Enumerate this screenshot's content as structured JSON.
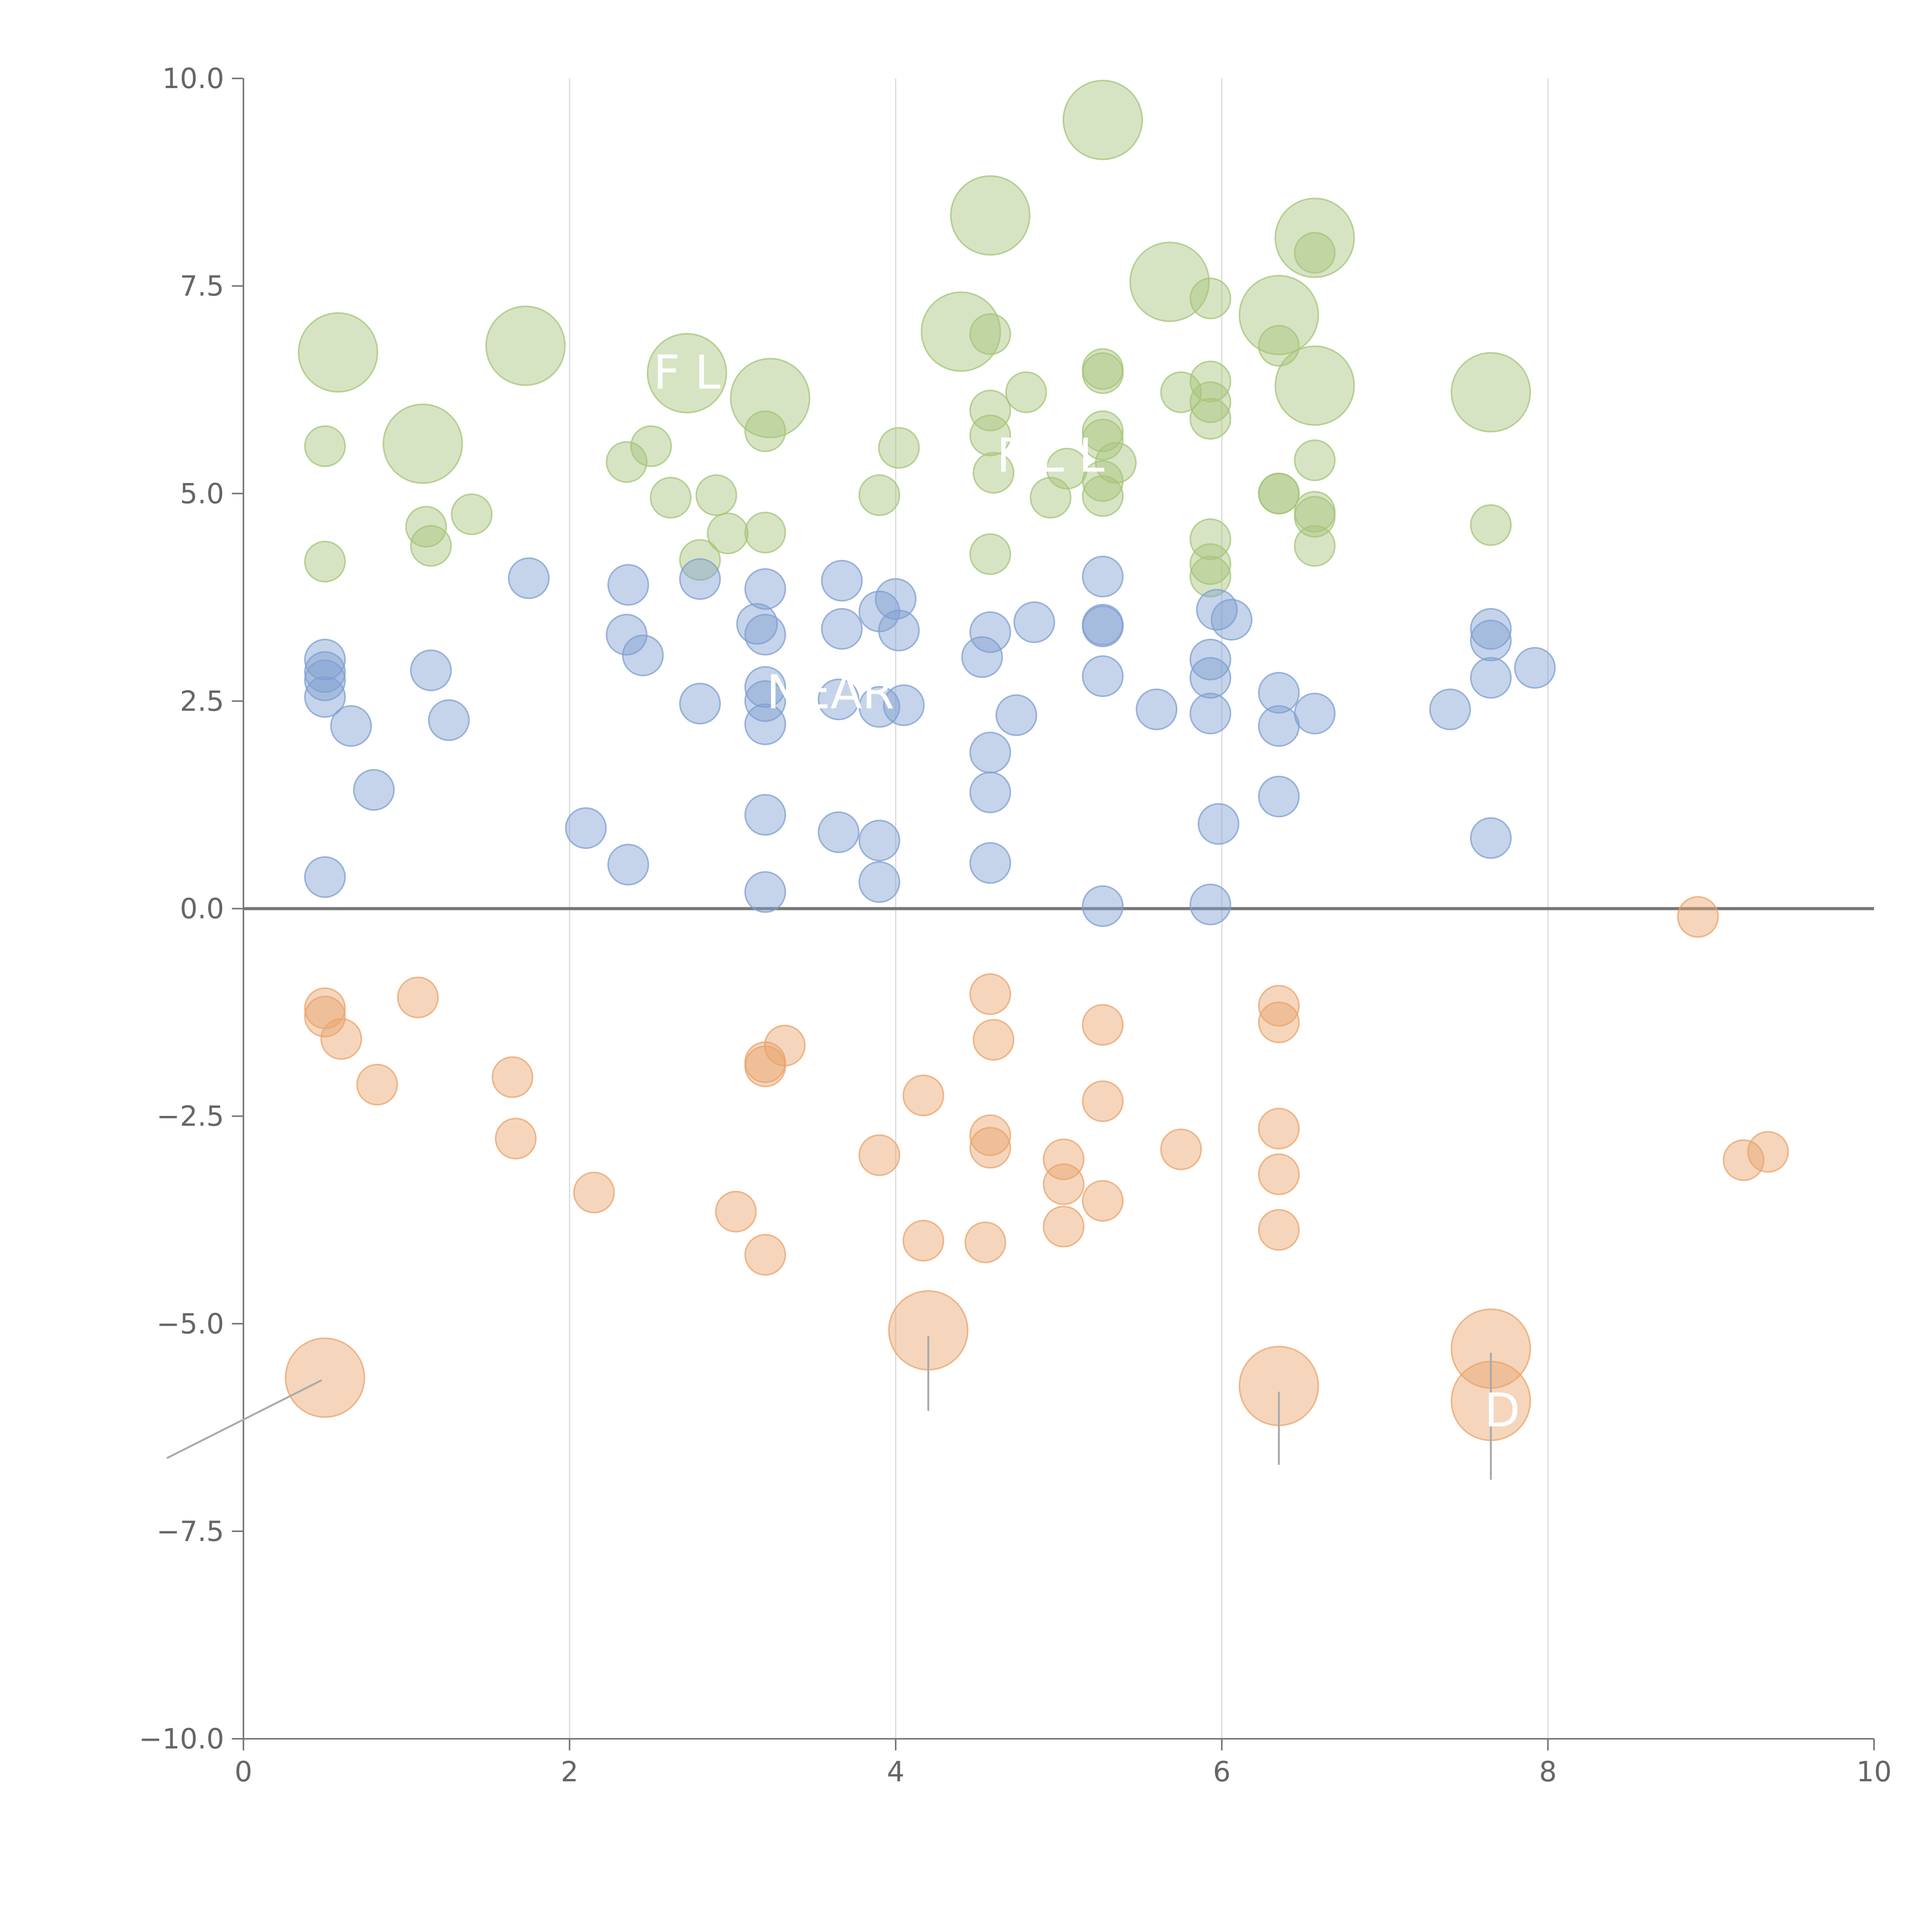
{
  "chart_data": {
    "type": "scatter",
    "title": "",
    "xlabel": "",
    "ylabel": "",
    "xlim": [
      0,
      10
    ],
    "ylim": [
      -10,
      10
    ],
    "x_ticks": [
      "0",
      "2",
      "4",
      "6",
      "8",
      "10"
    ],
    "y_ticks": [
      "−10.0",
      "−7.5",
      "−5.0",
      "−2.5",
      "0.0",
      "2.5",
      "5.0",
      "7.5",
      "10.0"
    ],
    "grid": "vertical only",
    "zero_line": true,
    "series": [
      {
        "color": "#a6c47a",
        "points": [
          [
            0.58,
            6.7,
            2
          ],
          [
            1.73,
            6.78,
            2
          ],
          [
            1.1,
            5.6,
            2
          ],
          [
            2.72,
            6.45,
            2
          ],
          [
            3.23,
            6.15,
            2
          ],
          [
            4.58,
            8.35,
            2
          ],
          [
            4.4,
            6.95,
            2
          ],
          [
            5.27,
            9.5,
            2
          ],
          [
            5.68,
            7.55,
            2
          ],
          [
            6.35,
            7.15,
            2
          ],
          [
            6.57,
            8.08,
            2
          ],
          [
            6.57,
            6.3,
            2
          ],
          [
            7.65,
            6.22,
            2
          ],
          [
            0.5,
            5.57,
            1
          ],
          [
            0.5,
            4.18,
            1
          ],
          [
            1.12,
            4.6,
            1
          ],
          [
            1.15,
            4.37,
            1
          ],
          [
            1.4,
            4.75,
            1
          ],
          [
            2.35,
            5.38,
            1
          ],
          [
            2.5,
            5.57,
            1
          ],
          [
            2.62,
            4.95,
            1
          ],
          [
            2.8,
            4.2,
            1
          ],
          [
            2.9,
            4.98,
            1
          ],
          [
            2.97,
            4.52,
            1
          ],
          [
            3.2,
            4.53,
            1
          ],
          [
            3.2,
            5.75,
            1
          ],
          [
            3.9,
            4.98,
            1
          ],
          [
            4.02,
            5.55,
            1
          ],
          [
            4.58,
            6.92,
            1
          ],
          [
            4.58,
            6.0,
            1
          ],
          [
            4.58,
            5.7,
            1
          ],
          [
            4.6,
            5.25,
            1
          ],
          [
            4.58,
            4.27,
            1
          ],
          [
            4.8,
            6.22,
            1
          ],
          [
            4.95,
            4.95,
            1
          ],
          [
            5.05,
            5.3,
            1
          ],
          [
            5.27,
            6.5,
            1
          ],
          [
            5.27,
            6.45,
            1
          ],
          [
            5.27,
            5.75,
            1
          ],
          [
            5.27,
            5.65,
            1
          ],
          [
            5.27,
            5.15,
            1
          ],
          [
            5.27,
            4.97,
            1
          ],
          [
            5.35,
            5.37,
            1
          ],
          [
            5.75,
            6.22,
            1
          ],
          [
            5.93,
            7.35,
            1
          ],
          [
            5.93,
            6.35,
            1
          ],
          [
            5.93,
            6.1,
            1
          ],
          [
            5.93,
            5.9,
            1
          ],
          [
            5.93,
            4.45,
            1
          ],
          [
            5.93,
            4.15,
            1
          ],
          [
            5.93,
            4.0,
            1
          ],
          [
            6.35,
            6.78,
            1
          ],
          [
            6.35,
            5.0,
            1
          ],
          [
            6.35,
            5.0,
            1
          ],
          [
            6.57,
            7.9,
            1
          ],
          [
            6.57,
            5.4,
            1
          ],
          [
            6.57,
            4.78,
            1
          ],
          [
            6.57,
            4.72,
            1
          ],
          [
            6.57,
            4.37,
            1
          ],
          [
            7.65,
            4.62,
            1
          ]
        ]
      },
      {
        "color": "#7f9fd1",
        "points": [
          [
            0.5,
            3.0,
            1
          ],
          [
            0.5,
            2.85,
            1
          ],
          [
            0.5,
            2.75,
            1
          ],
          [
            0.5,
            2.55,
            1
          ],
          [
            0.5,
            0.38,
            1
          ],
          [
            0.66,
            2.2,
            1
          ],
          [
            0.8,
            1.43,
            1
          ],
          [
            1.15,
            2.87,
            1
          ],
          [
            1.26,
            2.27,
            1
          ],
          [
            1.75,
            3.98,
            1
          ],
          [
            2.1,
            0.97,
            1
          ],
          [
            2.36,
            3.9,
            1
          ],
          [
            2.35,
            3.3,
            1
          ],
          [
            2.45,
            3.05,
            1
          ],
          [
            2.36,
            0.53,
            1
          ],
          [
            2.8,
            3.97,
            1
          ],
          [
            2.8,
            2.47,
            1
          ],
          [
            3.15,
            3.43,
            1
          ],
          [
            3.2,
            3.85,
            1
          ],
          [
            3.2,
            3.3,
            1
          ],
          [
            3.2,
            2.67,
            1
          ],
          [
            3.2,
            2.5,
            1
          ],
          [
            3.2,
            2.22,
            1
          ],
          [
            3.2,
            1.13,
            1
          ],
          [
            3.2,
            0.2,
            1
          ],
          [
            3.65,
            2.52,
            1
          ],
          [
            3.67,
            3.95,
            1
          ],
          [
            3.67,
            3.37,
            1
          ],
          [
            3.65,
            0.92,
            1
          ],
          [
            3.9,
            3.58,
            1
          ],
          [
            3.9,
            2.43,
            1
          ],
          [
            3.9,
            0.82,
            1
          ],
          [
            3.9,
            0.32,
            1
          ],
          [
            4.0,
            3.73,
            1
          ],
          [
            4.02,
            3.35,
            1
          ],
          [
            4.05,
            2.45,
            1
          ],
          [
            4.53,
            3.03,
            1
          ],
          [
            4.58,
            3.33,
            1
          ],
          [
            4.58,
            1.88,
            1
          ],
          [
            4.58,
            1.4,
            1
          ],
          [
            4.58,
            0.55,
            1
          ],
          [
            4.74,
            2.33,
            1
          ],
          [
            4.85,
            3.45,
            1
          ],
          [
            5.27,
            4.0,
            1
          ],
          [
            5.27,
            3.42,
            1
          ],
          [
            5.27,
            3.4,
            1
          ],
          [
            5.27,
            2.8,
            1
          ],
          [
            5.27,
            0.03,
            1
          ],
          [
            5.6,
            2.4,
            1
          ],
          [
            5.93,
            3.0,
            1
          ],
          [
            5.93,
            2.78,
            1
          ],
          [
            5.93,
            2.35,
            1
          ],
          [
            5.93,
            0.05,
            1
          ],
          [
            5.97,
            3.6,
            1
          ],
          [
            5.98,
            1.02,
            1
          ],
          [
            6.06,
            3.48,
            1
          ],
          [
            6.35,
            2.6,
            1
          ],
          [
            6.35,
            2.2,
            1
          ],
          [
            6.35,
            1.35,
            1
          ],
          [
            6.57,
            2.35,
            1
          ],
          [
            7.4,
            2.4,
            1
          ],
          [
            7.65,
            3.37,
            1
          ],
          [
            7.65,
            3.23,
            1
          ],
          [
            7.65,
            2.78,
            1
          ],
          [
            7.65,
            0.85,
            1
          ],
          [
            7.92,
            2.9,
            1
          ]
        ]
      },
      {
        "color": "#e9a46c",
        "points": [
          [
            0.5,
            -5.65,
            2
          ],
          [
            4.2,
            -5.08,
            2
          ],
          [
            6.35,
            -5.75,
            2
          ],
          [
            7.65,
            -5.3,
            2
          ],
          [
            7.65,
            -5.93,
            2
          ],
          [
            0.5,
            -1.2,
            1
          ],
          [
            0.5,
            -1.3,
            1
          ],
          [
            0.6,
            -1.57,
            1
          ],
          [
            0.82,
            -2.12,
            1
          ],
          [
            1.07,
            -1.07,
            1
          ],
          [
            1.65,
            -2.03,
            1
          ],
          [
            1.67,
            -2.77,
            1
          ],
          [
            2.15,
            -3.42,
            1
          ],
          [
            3.02,
            -3.65,
            1
          ],
          [
            3.2,
            -1.85,
            1
          ],
          [
            3.2,
            -1.9,
            1
          ],
          [
            3.2,
            -4.17,
            1
          ],
          [
            3.32,
            -1.65,
            1
          ],
          [
            3.9,
            -2.97,
            1
          ],
          [
            4.17,
            -2.25,
            1
          ],
          [
            4.17,
            -4.0,
            1
          ],
          [
            4.55,
            -4.02,
            1
          ],
          [
            4.58,
            -1.03,
            1
          ],
          [
            4.6,
            -1.58,
            1
          ],
          [
            4.58,
            -2.73,
            1
          ],
          [
            4.58,
            -2.88,
            1
          ],
          [
            5.03,
            -3.02,
            1
          ],
          [
            5.03,
            -3.32,
            1
          ],
          [
            5.03,
            -3.83,
            1
          ],
          [
            5.27,
            -1.4,
            1
          ],
          [
            5.27,
            -2.32,
            1
          ],
          [
            5.27,
            -3.52,
            1
          ],
          [
            5.75,
            -2.9,
            1
          ],
          [
            6.35,
            -1.17,
            1
          ],
          [
            6.35,
            -1.37,
            1
          ],
          [
            6.35,
            -2.65,
            1
          ],
          [
            6.35,
            -3.2,
            1
          ],
          [
            6.35,
            -3.87,
            1
          ],
          [
            8.92,
            -0.1,
            1
          ],
          [
            9.2,
            -3.03,
            1
          ],
          [
            9.35,
            -2.93,
            1
          ]
        ]
      }
    ],
    "annotations": [
      {
        "text": "F L",
        "x": 2.72,
        "y": 6.45
      },
      {
        "text": "NEAR",
        "x": 3.6,
        "y": 2.6
      },
      {
        "text": "F L L",
        "x": 4.95,
        "y": 5.45
      },
      {
        "text": "D",
        "x": 7.72,
        "y": -6.05
      }
    ],
    "leader_lines": [
      {
        "x1": 0.48,
        "y1": -5.68,
        "x2": -0.47,
        "y2": -6.62
      },
      {
        "x1": 4.2,
        "y1": -5.15,
        "x2": 4.2,
        "y2": -6.05
      },
      {
        "x1": 6.35,
        "y1": -5.82,
        "x2": 6.35,
        "y2": -6.7
      },
      {
        "x1": 7.65,
        "y1": -5.35,
        "x2": 7.65,
        "y2": -6.88
      }
    ]
  }
}
